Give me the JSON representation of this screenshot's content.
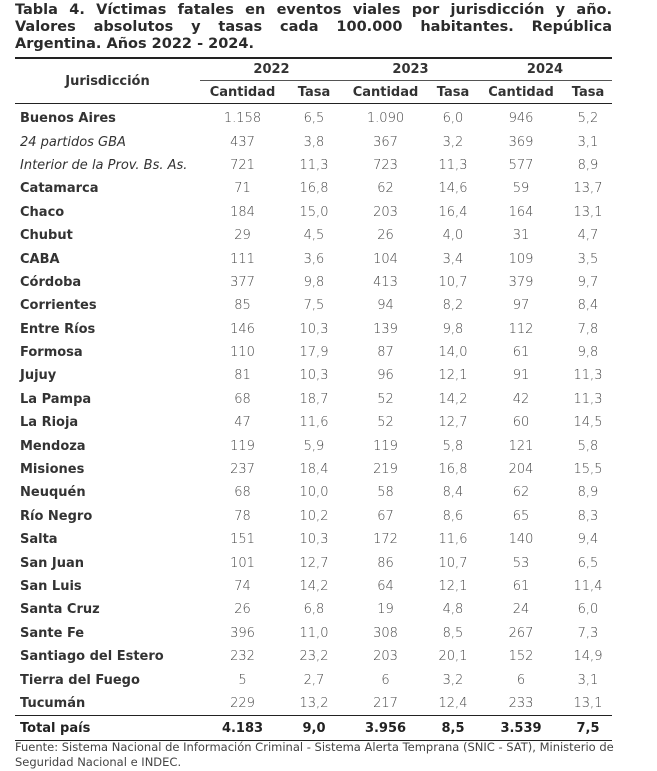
{
  "title": "Tabla 4. Víctimas fatales en eventos viales por jurisdicción y año. Valores absolutos y tasas cada 100.000 habitantes. República Argentina. Años 2022 - 2024.",
  "header": {
    "first": "Jurisdicción",
    "years": [
      "2022",
      "2023",
      "2024"
    ],
    "subcolumns": [
      "Cantidad",
      "Tasa"
    ]
  },
  "table": {
    "rows": [
      [
        "Buenos Aires",
        "1.158",
        "6,5",
        "1.090",
        "6,0",
        "946",
        "5,2"
      ],
      [
        "24 partidos GBA",
        "437",
        "3,8",
        "367",
        "3,2",
        "369",
        "3,1"
      ],
      [
        "Interior de la Prov. Bs. As.",
        "721",
        "11,3",
        "723",
        "11,3",
        "577",
        "8,9"
      ],
      [
        "Catamarca",
        "71",
        "16,8",
        "62",
        "14,6",
        "59",
        "13,7"
      ],
      [
        "Chaco",
        "184",
        "15,0",
        "203",
        "16,4",
        "164",
        "13,1"
      ],
      [
        "Chubut",
        "29",
        "4,5",
        "26",
        "4,0",
        "31",
        "4,7"
      ],
      [
        "CABA",
        "111",
        "3,6",
        "104",
        "3,4",
        "109",
        "3,5"
      ],
      [
        "Córdoba",
        "377",
        "9,8",
        "413",
        "10,7",
        "379",
        "9,7"
      ],
      [
        "Corrientes",
        "85",
        "7,5",
        "94",
        "8,2",
        "97",
        "8,4"
      ],
      [
        "Entre Ríos",
        "146",
        "10,3",
        "139",
        "9,8",
        "112",
        "7,8"
      ],
      [
        "Formosa",
        "110",
        "17,9",
        "87",
        "14,0",
        "61",
        "9,8"
      ],
      [
        "Jujuy",
        "81",
        "10,3",
        "96",
        "12,1",
        "91",
        "11,3"
      ],
      [
        "La Pampa",
        "68",
        "18,7",
        "52",
        "14,2",
        "42",
        "11,3"
      ],
      [
        "La Rioja",
        "47",
        "11,6",
        "52",
        "12,7",
        "60",
        "14,5"
      ],
      [
        "Mendoza",
        "119",
        "5,9",
        "119",
        "5,8",
        "121",
        "5,8"
      ],
      [
        "Misiones",
        "237",
        "18,4",
        "219",
        "16,8",
        "204",
        "15,5"
      ],
      [
        "Neuquén",
        "68",
        "10,0",
        "58",
        "8,4",
        "62",
        "8,9"
      ],
      [
        "Río Negro",
        "78",
        "10,2",
        "67",
        "8,6",
        "65",
        "8,3"
      ],
      [
        "Salta",
        "151",
        "10,3",
        "172",
        "11,6",
        "140",
        "9,4"
      ],
      [
        "San Juan",
        "101",
        "12,7",
        "86",
        "10,7",
        "53",
        "6,5"
      ],
      [
        "San Luis",
        "74",
        "14,2",
        "64",
        "12,1",
        "61",
        "11,4"
      ],
      [
        "Santa Cruz",
        "26",
        "6,8",
        "19",
        "4,8",
        "24",
        "6,0"
      ],
      [
        "Sante Fe",
        "396",
        "11,0",
        "308",
        "8,5",
        "267",
        "7,3"
      ],
      [
        "Santiago del Estero",
        "232",
        "23,2",
        "203",
        "20,1",
        "152",
        "14,9"
      ],
      [
        "Tierra del Fuego",
        "5",
        "2,7",
        "6",
        "3,2",
        "6",
        "3,1"
      ],
      [
        "Tucumán",
        "229",
        "13,2",
        "217",
        "12,4",
        "233",
        "13,1"
      ]
    ],
    "total": [
      "Total país",
      "4.183",
      "9,0",
      "3.956",
      "8,5",
      "3.539",
      "7,5"
    ]
  },
  "footer": "Fuente: Sistema Nacional de Información Criminal - Sistema Alerta Temprana (SNIC - SAT), Ministerio de Seguridad Nacional e INDEC."
}
